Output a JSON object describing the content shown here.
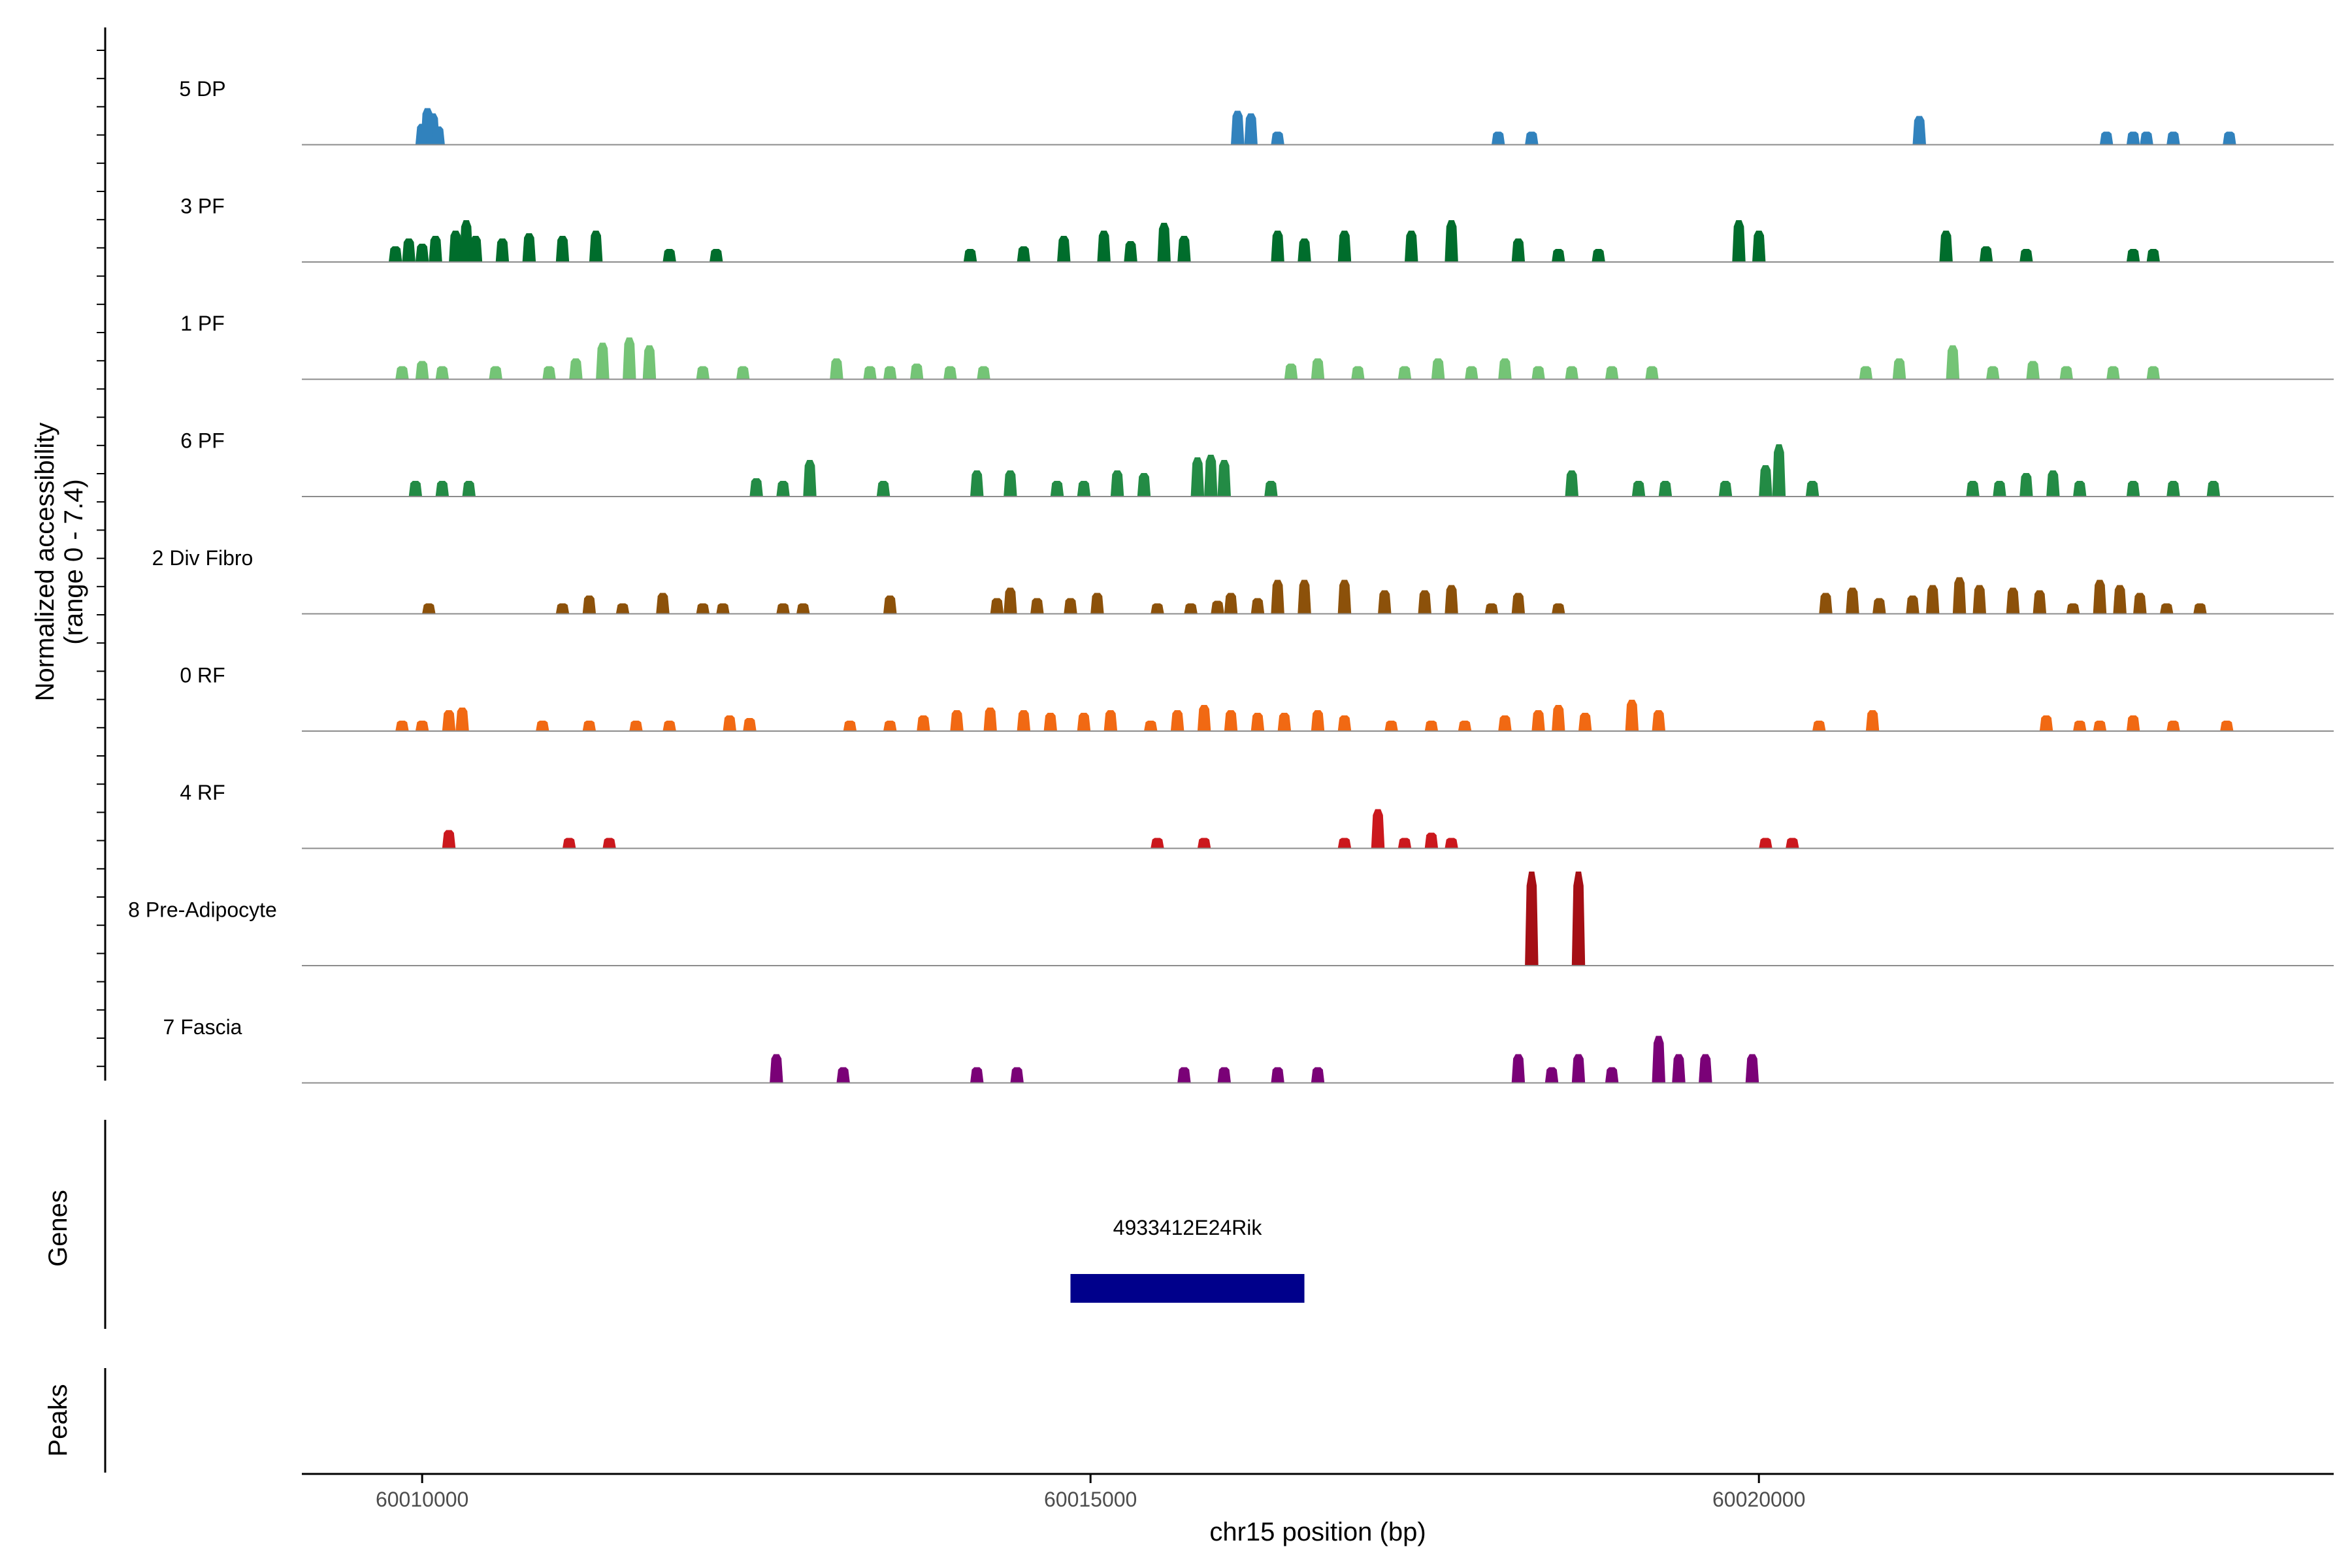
{
  "chart_data": {
    "type": "area",
    "title": "",
    "ylabel_line1": "Normalized accessibility",
    "ylabel_line2": "(range 0 - 7.4)",
    "xlabel": "chr15 position (bp)",
    "xlim": [
      60009100,
      60024300
    ],
    "ylim": [
      0,
      7.4
    ],
    "x_ticks": [
      {
        "value": 60010000,
        "label": "60010000"
      },
      {
        "value": 60015000,
        "label": "60015000"
      },
      {
        "value": 60020000,
        "label": "60020000"
      }
    ],
    "genes_label": "Genes",
    "peaks_label": "Peaks",
    "genes": [
      {
        "name": "4933412E24Rik",
        "start": 60014850,
        "end": 60016600,
        "color": "#00008b"
      }
    ],
    "tracks": [
      {
        "name": "5 DP",
        "color": "#3182bd",
        "peaks": [
          [
            60010000,
            0.8
          ],
          [
            60010040,
            1.4
          ],
          [
            60010080,
            1.2
          ],
          [
            60010120,
            0.7
          ],
          [
            60016100,
            1.3
          ],
          [
            60016200,
            1.2
          ],
          [
            60016400,
            0.5
          ],
          [
            60018050,
            0.5
          ],
          [
            60018300,
            0.5
          ],
          [
            60021200,
            1.1
          ],
          [
            60022600,
            0.5
          ],
          [
            60022800,
            0.5
          ],
          [
            60022900,
            0.5
          ],
          [
            60023100,
            0.5
          ],
          [
            60023520,
            0.5
          ]
        ]
      },
      {
        "name": "3 PF",
        "color": "#006d2c",
        "peaks": [
          [
            60009800,
            0.6
          ],
          [
            60009900,
            0.9
          ],
          [
            60010000,
            0.7
          ],
          [
            60010100,
            1.0
          ],
          [
            60010250,
            1.2
          ],
          [
            60010330,
            1.6
          ],
          [
            60010400,
            1.0
          ],
          [
            60010600,
            0.9
          ],
          [
            60010800,
            1.1
          ],
          [
            60011050,
            1.0
          ],
          [
            60011300,
            1.2
          ],
          [
            60011850,
            0.5
          ],
          [
            60012200,
            0.5
          ],
          [
            60014100,
            0.5
          ],
          [
            60014500,
            0.6
          ],
          [
            60014800,
            1.0
          ],
          [
            60015100,
            1.2
          ],
          [
            60015300,
            0.8
          ],
          [
            60015550,
            1.5
          ],
          [
            60015700,
            1.0
          ],
          [
            60016400,
            1.2
          ],
          [
            60016600,
            0.9
          ],
          [
            60016900,
            1.2
          ],
          [
            60017400,
            1.2
          ],
          [
            60017700,
            1.6
          ],
          [
            60018200,
            0.9
          ],
          [
            60018500,
            0.5
          ],
          [
            60018800,
            0.5
          ],
          [
            60019850,
            1.6
          ],
          [
            60020000,
            1.2
          ],
          [
            60021400,
            1.2
          ],
          [
            60021700,
            0.6
          ],
          [
            60022000,
            0.5
          ],
          [
            60022800,
            0.5
          ],
          [
            60022950,
            0.5
          ]
        ]
      },
      {
        "name": "1 PF",
        "color": "#74c476",
        "peaks": [
          [
            60009850,
            0.5
          ],
          [
            60010000,
            0.7
          ],
          [
            60010150,
            0.5
          ],
          [
            60010550,
            0.5
          ],
          [
            60010950,
            0.5
          ],
          [
            60011150,
            0.8
          ],
          [
            60011350,
            1.4
          ],
          [
            60011550,
            1.6
          ],
          [
            60011700,
            1.3
          ],
          [
            60012100,
            0.5
          ],
          [
            60012400,
            0.5
          ],
          [
            60013100,
            0.8
          ],
          [
            60013350,
            0.5
          ],
          [
            60013500,
            0.5
          ],
          [
            60013700,
            0.6
          ],
          [
            60013950,
            0.5
          ],
          [
            60014200,
            0.5
          ],
          [
            60016500,
            0.6
          ],
          [
            60016700,
            0.8
          ],
          [
            60017000,
            0.5
          ],
          [
            60017350,
            0.5
          ],
          [
            60017600,
            0.8
          ],
          [
            60017850,
            0.5
          ],
          [
            60018100,
            0.8
          ],
          [
            60018350,
            0.5
          ],
          [
            60018600,
            0.5
          ],
          [
            60018900,
            0.5
          ],
          [
            60019200,
            0.5
          ],
          [
            60020800,
            0.5
          ],
          [
            60021050,
            0.8
          ],
          [
            60021450,
            1.3
          ],
          [
            60021750,
            0.5
          ],
          [
            60022050,
            0.7
          ],
          [
            60022300,
            0.5
          ],
          [
            60022650,
            0.5
          ],
          [
            60022950,
            0.5
          ]
        ]
      },
      {
        "name": "6 PF",
        "color": "#238b45",
        "peaks": [
          [
            60009950,
            0.6
          ],
          [
            60010150,
            0.6
          ],
          [
            60010350,
            0.6
          ],
          [
            60012500,
            0.7
          ],
          [
            60012700,
            0.6
          ],
          [
            60012900,
            1.4
          ],
          [
            60013450,
            0.6
          ],
          [
            60014150,
            1.0
          ],
          [
            60014400,
            1.0
          ],
          [
            60014750,
            0.6
          ],
          [
            60014950,
            0.6
          ],
          [
            60015200,
            1.0
          ],
          [
            60015400,
            0.9
          ],
          [
            60015800,
            1.5
          ],
          [
            60015900,
            1.6
          ],
          [
            60016000,
            1.4
          ],
          [
            60016350,
            0.6
          ],
          [
            60018600,
            1.0
          ],
          [
            60019100,
            0.6
          ],
          [
            60019300,
            0.6
          ],
          [
            60019750,
            0.6
          ],
          [
            60020050,
            1.2
          ],
          [
            60020150,
            2.0
          ],
          [
            60020400,
            0.6
          ],
          [
            60021600,
            0.6
          ],
          [
            60021800,
            0.6
          ],
          [
            60022000,
            0.9
          ],
          [
            60022200,
            1.0
          ],
          [
            60022400,
            0.6
          ],
          [
            60022800,
            0.6
          ],
          [
            60023100,
            0.6
          ],
          [
            60023400,
            0.6
          ]
        ]
      },
      {
        "name": "2 Div Fibro",
        "color": "#8c510a",
        "peaks": [
          [
            60010050,
            0.4
          ],
          [
            60011050,
            0.4
          ],
          [
            60011250,
            0.7
          ],
          [
            60011500,
            0.4
          ],
          [
            60011800,
            0.8
          ],
          [
            60012100,
            0.4
          ],
          [
            60012250,
            0.4
          ],
          [
            60012700,
            0.4
          ],
          [
            60012850,
            0.4
          ],
          [
            60013500,
            0.7
          ],
          [
            60014300,
            0.6
          ],
          [
            60014400,
            1.0
          ],
          [
            60014600,
            0.6
          ],
          [
            60014850,
            0.6
          ],
          [
            60015050,
            0.8
          ],
          [
            60015500,
            0.4
          ],
          [
            60015750,
            0.4
          ],
          [
            60015950,
            0.5
          ],
          [
            60016050,
            0.8
          ],
          [
            60016250,
            0.6
          ],
          [
            60016400,
            1.3
          ],
          [
            60016600,
            1.3
          ],
          [
            60016900,
            1.3
          ],
          [
            60017200,
            0.9
          ],
          [
            60017500,
            0.9
          ],
          [
            60017700,
            1.1
          ],
          [
            60018000,
            0.4
          ],
          [
            60018200,
            0.8
          ],
          [
            60018500,
            0.4
          ],
          [
            60020500,
            0.8
          ],
          [
            60020700,
            1.0
          ],
          [
            60020900,
            0.6
          ],
          [
            60021150,
            0.7
          ],
          [
            60021300,
            1.1
          ],
          [
            60021500,
            1.4
          ],
          [
            60021650,
            1.1
          ],
          [
            60021900,
            1.0
          ],
          [
            60022100,
            0.9
          ],
          [
            60022350,
            0.4
          ],
          [
            60022550,
            1.3
          ],
          [
            60022700,
            1.1
          ],
          [
            60022850,
            0.8
          ],
          [
            60023050,
            0.4
          ],
          [
            60023300,
            0.4
          ]
        ]
      },
      {
        "name": "0 RF",
        "color": "#f16913",
        "peaks": [
          [
            60009850,
            0.4
          ],
          [
            60010000,
            0.4
          ],
          [
            60010200,
            0.8
          ],
          [
            60010300,
            0.9
          ],
          [
            60010900,
            0.4
          ],
          [
            60011250,
            0.4
          ],
          [
            60011600,
            0.4
          ],
          [
            60011850,
            0.4
          ],
          [
            60012300,
            0.6
          ],
          [
            60012450,
            0.5
          ],
          [
            60013200,
            0.4
          ],
          [
            60013500,
            0.4
          ],
          [
            60013750,
            0.6
          ],
          [
            60014000,
            0.8
          ],
          [
            60014250,
            0.9
          ],
          [
            60014500,
            0.8
          ],
          [
            60014700,
            0.7
          ],
          [
            60014950,
            0.7
          ],
          [
            60015150,
            0.8
          ],
          [
            60015450,
            0.4
          ],
          [
            60015650,
            0.8
          ],
          [
            60015850,
            1.0
          ],
          [
            60016050,
            0.8
          ],
          [
            60016250,
            0.7
          ],
          [
            60016450,
            0.7
          ],
          [
            60016700,
            0.8
          ],
          [
            60016900,
            0.6
          ],
          [
            60017250,
            0.4
          ],
          [
            60017550,
            0.4
          ],
          [
            60017800,
            0.4
          ],
          [
            60018100,
            0.6
          ],
          [
            60018350,
            0.8
          ],
          [
            60018500,
            1.0
          ],
          [
            60018700,
            0.7
          ],
          [
            60019050,
            1.2
          ],
          [
            60019250,
            0.8
          ],
          [
            60020450,
            0.4
          ],
          [
            60020850,
            0.8
          ],
          [
            60022150,
            0.6
          ],
          [
            60022400,
            0.4
          ],
          [
            60022550,
            0.4
          ],
          [
            60022800,
            0.6
          ],
          [
            60023100,
            0.4
          ],
          [
            60023500,
            0.4
          ]
        ]
      },
      {
        "name": "4 RF",
        "color": "#cb181d",
        "peaks": [
          [
            60010200,
            0.7
          ],
          [
            60011100,
            0.4
          ],
          [
            60011400,
            0.4
          ],
          [
            60015500,
            0.4
          ],
          [
            60015850,
            0.4
          ],
          [
            60016900,
            0.4
          ],
          [
            60017150,
            1.5
          ],
          [
            60017350,
            0.4
          ],
          [
            60017550,
            0.6
          ],
          [
            60017700,
            0.4
          ],
          [
            60020050,
            0.4
          ],
          [
            60020250,
            0.4
          ]
        ]
      },
      {
        "name": "8 Pre-Adipocyte",
        "color": "#a50f15",
        "peaks": [
          [
            60018300,
            3.6
          ],
          [
            60018650,
            3.6
          ]
        ]
      },
      {
        "name": "7 Fascia",
        "color": "#7a0177",
        "peaks": [
          [
            60012650,
            1.1
          ],
          [
            60013150,
            0.6
          ],
          [
            60014150,
            0.6
          ],
          [
            60014450,
            0.6
          ],
          [
            60015700,
            0.6
          ],
          [
            60016000,
            0.6
          ],
          [
            60016400,
            0.6
          ],
          [
            60016700,
            0.6
          ],
          [
            60018200,
            1.1
          ],
          [
            60018450,
            0.6
          ],
          [
            60018650,
            1.1
          ],
          [
            60018900,
            0.6
          ],
          [
            60019250,
            1.8
          ],
          [
            60019400,
            1.1
          ],
          [
            60019600,
            1.1
          ],
          [
            60019950,
            1.1
          ]
        ]
      }
    ]
  }
}
